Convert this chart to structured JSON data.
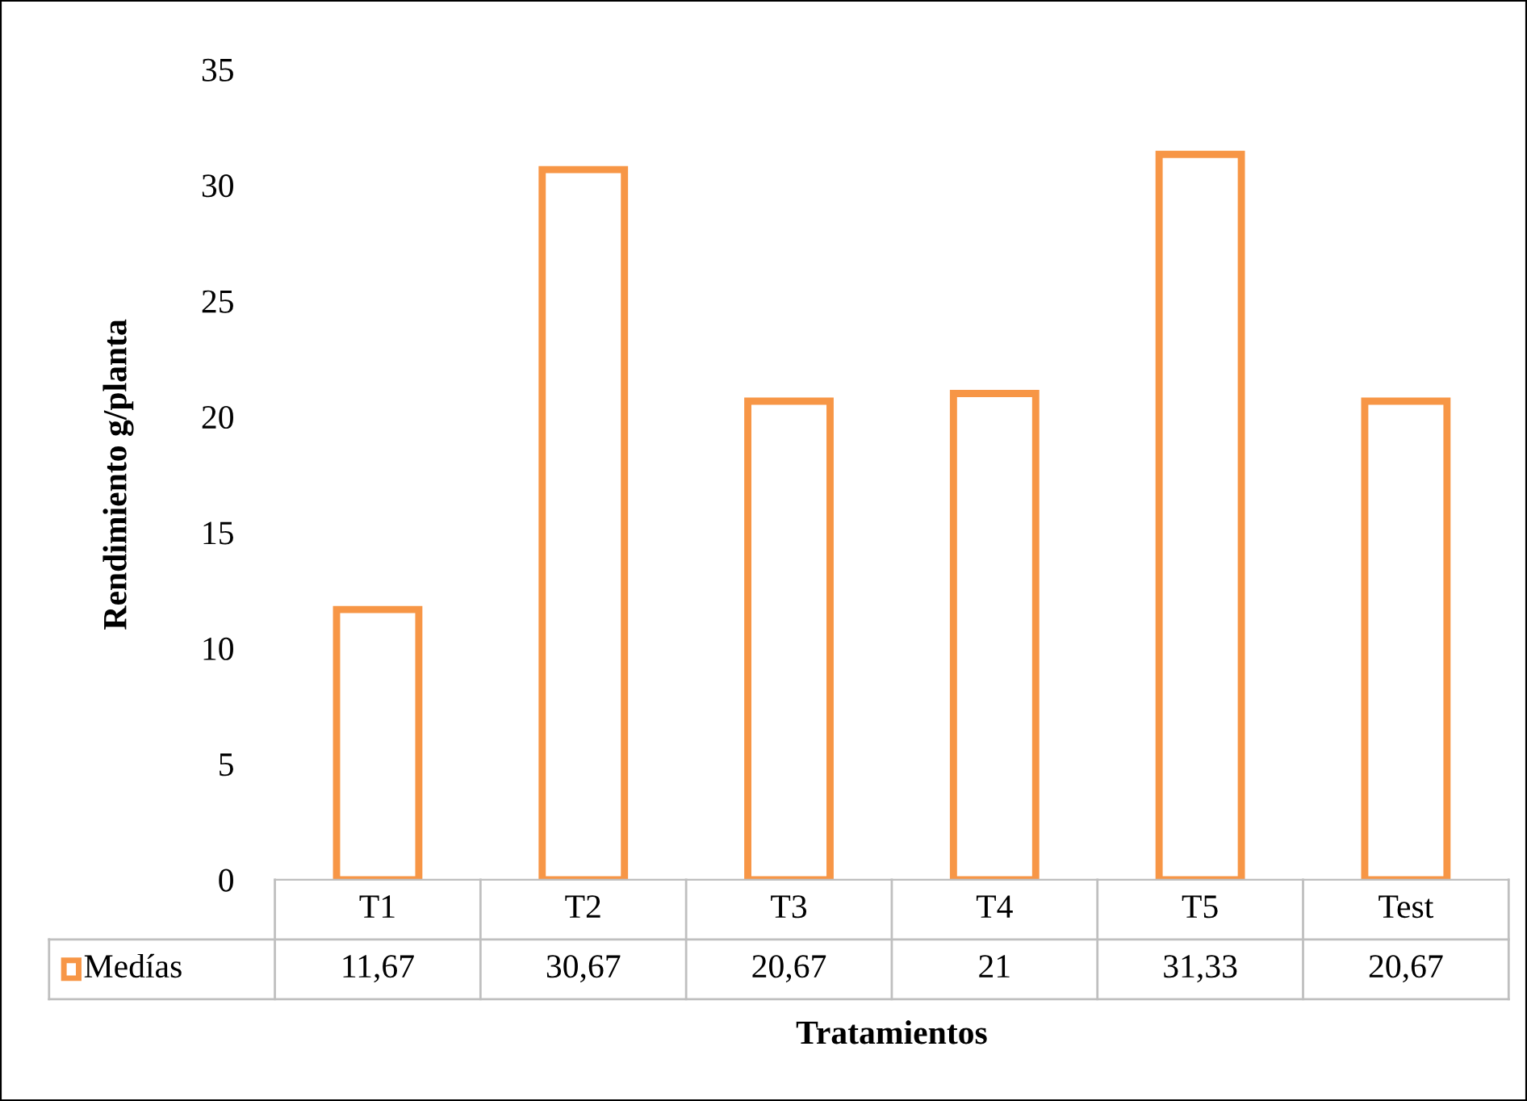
{
  "chart_data": {
    "type": "bar",
    "xlabel": "Tratamientos",
    "ylabel": "Rendimiento g/planta",
    "categories": [
      "T1",
      "T2",
      "T3",
      "T4",
      "T5",
      "Test"
    ],
    "series": [
      {
        "name": "Medías",
        "color": "#f79646",
        "values": [
          11.67,
          30.67,
          20.67,
          21,
          31.33,
          20.67
        ],
        "value_labels": [
          "11,67",
          "30,67",
          "20,67",
          "21",
          "31,33",
          "20,67"
        ]
      }
    ],
    "ylim": [
      0,
      35
    ],
    "yticks": [
      0,
      5,
      10,
      15,
      20,
      25,
      30,
      35
    ],
    "grid": false,
    "legend": "bottom"
  }
}
